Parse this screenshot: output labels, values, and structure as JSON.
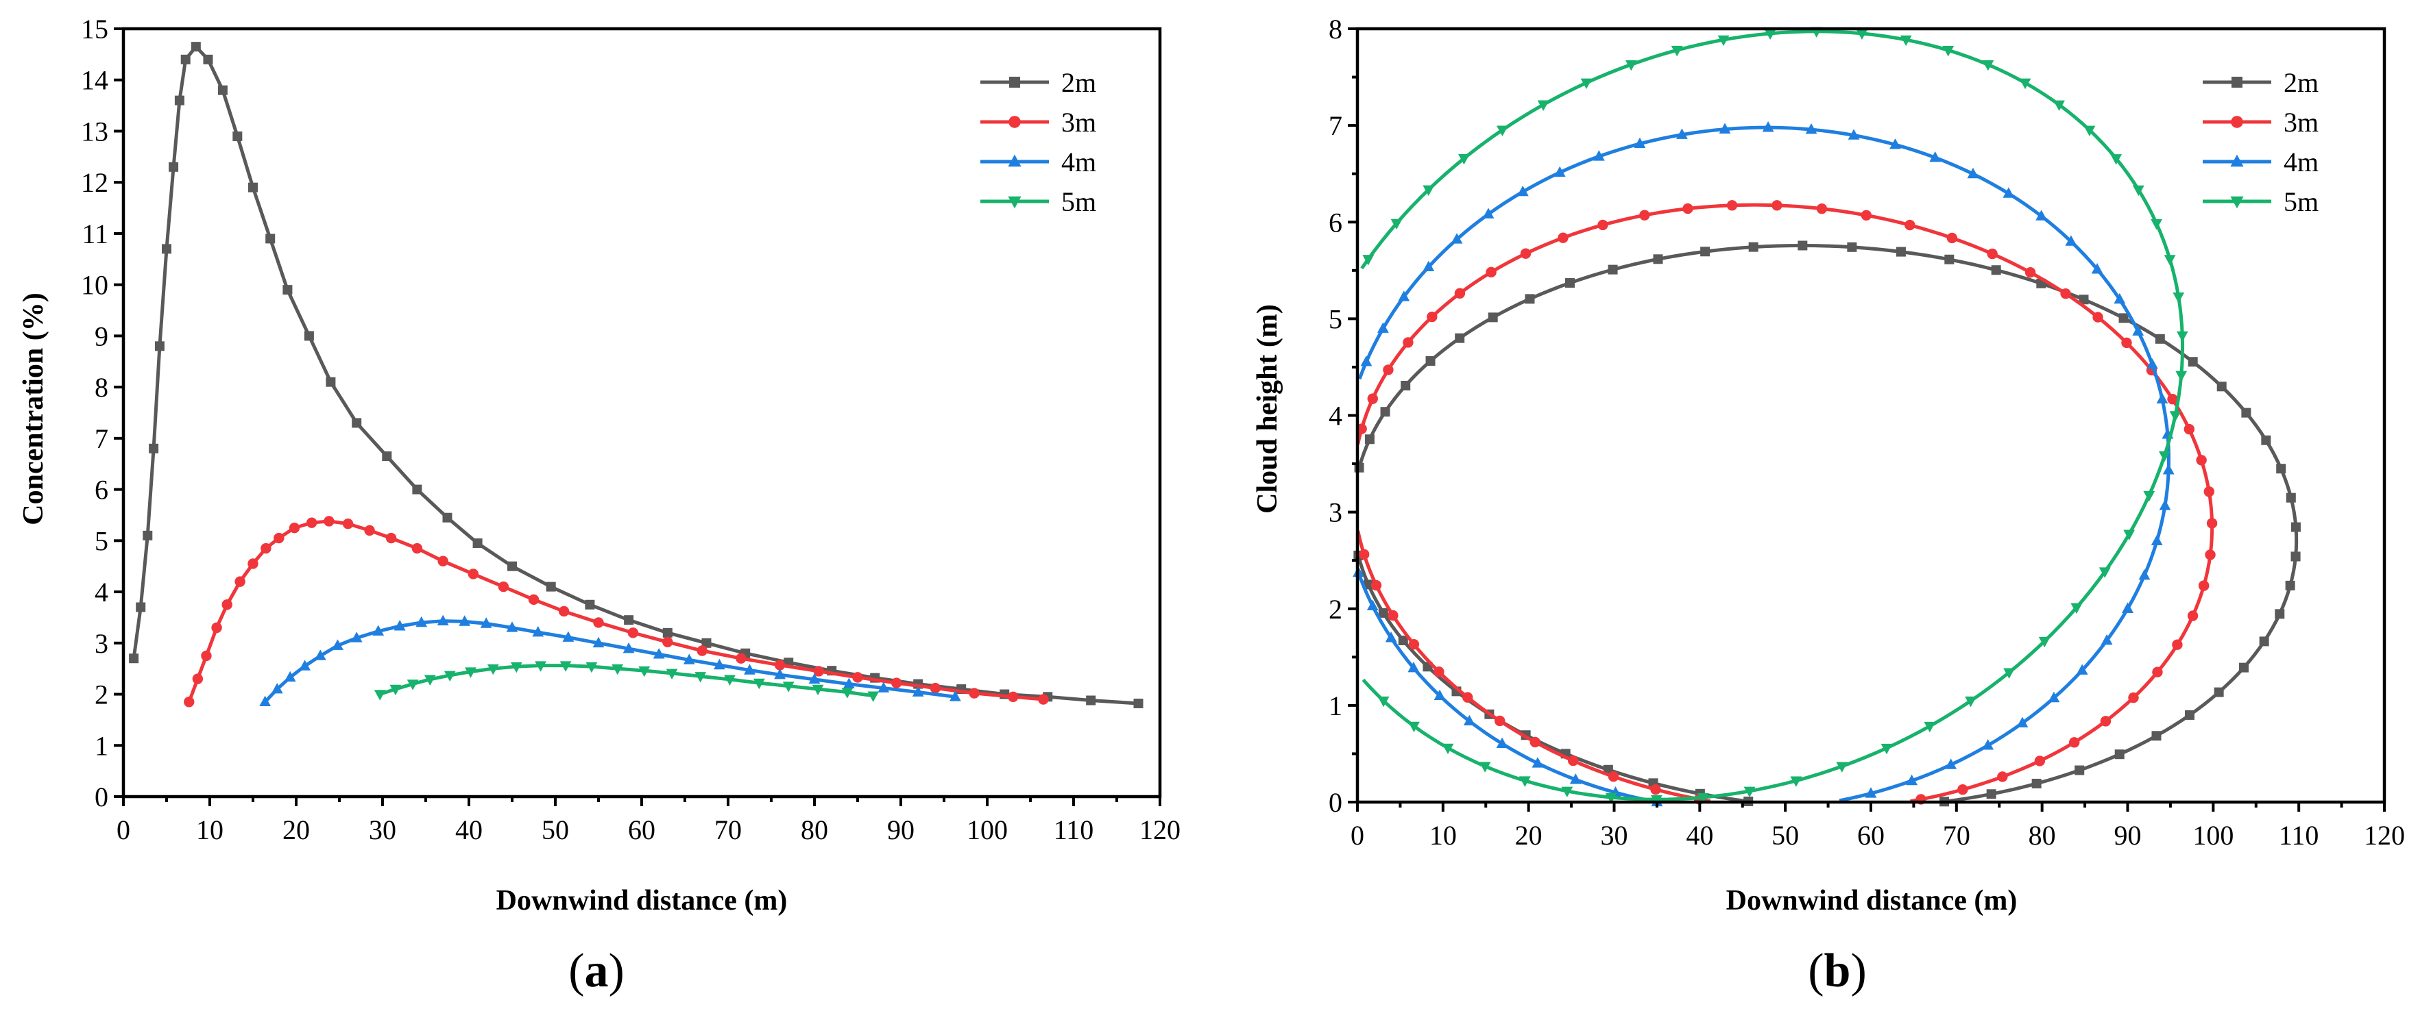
{
  "colors": {
    "2m": "#595959",
    "3m": "#f0363b",
    "4m": "#1f7fe0",
    "5m": "#17b26b"
  },
  "chart_data": [
    {
      "id": "a",
      "type": "line",
      "caption": "a",
      "xlabel": "Downwind distance (m)",
      "ylabel": "Concentration (%)",
      "xlim": [
        0,
        120
      ],
      "ylim": [
        0,
        15
      ],
      "xticks": [
        0,
        10,
        20,
        30,
        40,
        50,
        60,
        70,
        80,
        90,
        100,
        110,
        120
      ],
      "yticks": [
        0,
        1,
        2,
        3,
        4,
        5,
        6,
        7,
        8,
        9,
        10,
        11,
        12,
        13,
        14,
        15
      ],
      "legend_position": "top-right",
      "series": [
        {
          "name": "2m",
          "marker": "square",
          "points": [
            [
              1.2,
              2.7
            ],
            [
              2,
              3.7
            ],
            [
              2.8,
              5.1
            ],
            [
              3.5,
              6.8
            ],
            [
              4.2,
              8.8
            ],
            [
              5,
              10.7
            ],
            [
              5.8,
              12.3
            ],
            [
              6.5,
              13.6
            ],
            [
              7.2,
              14.4
            ],
            [
              8.4,
              14.65
            ],
            [
              9.8,
              14.4
            ],
            [
              11.5,
              13.8
            ],
            [
              13.2,
              12.9
            ],
            [
              15,
              11.9
            ],
            [
              17,
              10.9
            ],
            [
              19,
              9.9
            ],
            [
              21.5,
              9.0
            ],
            [
              24,
              8.1
            ],
            [
              27,
              7.3
            ],
            [
              30.5,
              6.65
            ],
            [
              34,
              6.0
            ],
            [
              37.5,
              5.45
            ],
            [
              41,
              4.95
            ],
            [
              45,
              4.5
            ],
            [
              49.5,
              4.1
            ],
            [
              54,
              3.75
            ],
            [
              58.5,
              3.45
            ],
            [
              63,
              3.2
            ],
            [
              67.5,
              3.0
            ],
            [
              72,
              2.8
            ],
            [
              77,
              2.62
            ],
            [
              82,
              2.46
            ],
            [
              87,
              2.32
            ],
            [
              92,
              2.2
            ],
            [
              97,
              2.1
            ],
            [
              102,
              2.0
            ],
            [
              107,
              1.95
            ],
            [
              112,
              1.88
            ],
            [
              117.5,
              1.82
            ]
          ]
        },
        {
          "name": "3m",
          "marker": "circle",
          "points": [
            [
              7.6,
              1.85
            ],
            [
              8.6,
              2.3
            ],
            [
              9.6,
              2.75
            ],
            [
              10.8,
              3.3
            ],
            [
              12,
              3.75
            ],
            [
              13.5,
              4.2
            ],
            [
              15,
              4.55
            ],
            [
              16.5,
              4.85
            ],
            [
              18,
              5.05
            ],
            [
              19.8,
              5.25
            ],
            [
              21.8,
              5.35
            ],
            [
              23.8,
              5.38
            ],
            [
              26,
              5.33
            ],
            [
              28.5,
              5.2
            ],
            [
              31,
              5.05
            ],
            [
              34,
              4.85
            ],
            [
              37,
              4.6
            ],
            [
              40.5,
              4.35
            ],
            [
              44,
              4.1
            ],
            [
              47.5,
              3.85
            ],
            [
              51,
              3.62
            ],
            [
              55,
              3.4
            ],
            [
              59,
              3.2
            ],
            [
              63,
              3.02
            ],
            [
              67,
              2.85
            ],
            [
              71.5,
              2.7
            ],
            [
              76,
              2.57
            ],
            [
              80.5,
              2.45
            ],
            [
              85,
              2.33
            ],
            [
              89.5,
              2.22
            ],
            [
              94,
              2.12
            ],
            [
              98.5,
              2.02
            ],
            [
              103,
              1.95
            ],
            [
              106.5,
              1.9
            ]
          ]
        },
        {
          "name": "4m",
          "marker": "triangle-up",
          "points": [
            [
              16.4,
              1.85
            ],
            [
              17.8,
              2.1
            ],
            [
              19.3,
              2.33
            ],
            [
              21,
              2.55
            ],
            [
              22.8,
              2.75
            ],
            [
              24.8,
              2.95
            ],
            [
              27,
              3.1
            ],
            [
              29.5,
              3.23
            ],
            [
              32,
              3.33
            ],
            [
              34.5,
              3.4
            ],
            [
              37,
              3.43
            ],
            [
              39.5,
              3.42
            ],
            [
              42,
              3.38
            ],
            [
              45,
              3.3
            ],
            [
              48,
              3.21
            ],
            [
              51.5,
              3.11
            ],
            [
              55,
              3.0
            ],
            [
              58.5,
              2.89
            ],
            [
              62,
              2.78
            ],
            [
              65.5,
              2.67
            ],
            [
              69,
              2.57
            ],
            [
              72.5,
              2.47
            ],
            [
              76,
              2.38
            ],
            [
              80,
              2.29
            ],
            [
              84,
              2.2
            ],
            [
              88,
              2.12
            ],
            [
              92,
              2.04
            ],
            [
              96.3,
              1.95
            ]
          ]
        },
        {
          "name": "5m",
          "marker": "triangle-down",
          "points": [
            [
              29.7,
              2.0
            ],
            [
              31.5,
              2.1
            ],
            [
              33.5,
              2.2
            ],
            [
              35.5,
              2.29
            ],
            [
              37.8,
              2.37
            ],
            [
              40.2,
              2.44
            ],
            [
              42.8,
              2.5
            ],
            [
              45.5,
              2.54
            ],
            [
              48.3,
              2.56
            ],
            [
              51.2,
              2.56
            ],
            [
              54.2,
              2.54
            ],
            [
              57.2,
              2.5
            ],
            [
              60.3,
              2.46
            ],
            [
              63.5,
              2.41
            ],
            [
              66.8,
              2.35
            ],
            [
              70.2,
              2.29
            ],
            [
              73.6,
              2.22
            ],
            [
              77,
              2.16
            ],
            [
              80.4,
              2.1
            ],
            [
              83.8,
              2.04
            ],
            [
              86.8,
              1.97
            ]
          ]
        }
      ]
    },
    {
      "id": "b",
      "type": "line",
      "caption": "b",
      "xlabel": "Downwind distance (m)",
      "ylabel": "Cloud height (m)",
      "xlim": [
        0,
        120
      ],
      "ylim": [
        0,
        8
      ],
      "xticks": [
        0,
        10,
        20,
        30,
        40,
        50,
        60,
        70,
        80,
        90,
        100,
        110,
        120
      ],
      "yticks": [
        0,
        1,
        2,
        3,
        4,
        5,
        6,
        7,
        8
      ],
      "legend_position": "top-right",
      "series": [
        {
          "name": "2m",
          "marker": "square",
          "ellipse": {
            "cx": 54.6,
            "cy": 2.85,
            "rx": 55.2,
            "ry": 2.9,
            "angle_deg": -4.5
          }
        },
        {
          "name": "3m",
          "marker": "circle",
          "ellipse": {
            "cx": 49.7,
            "cy": 3.05,
            "rx": 50.5,
            "ry": 3.1,
            "angle_deg": -13
          }
        },
        {
          "name": "4m",
          "marker": "triangle-up",
          "ellipse": {
            "cx": 46.5,
            "cy": 3.45,
            "rx": 48.0,
            "ry": 3.55,
            "angle_deg": -25
          }
        },
        {
          "name": "5m",
          "marker": "triangle-down",
          "ellipse": {
            "cx": 44.3,
            "cy": 4.0,
            "rx": 48.5,
            "ry": 4.2,
            "angle_deg": -35
          }
        }
      ]
    }
  ]
}
